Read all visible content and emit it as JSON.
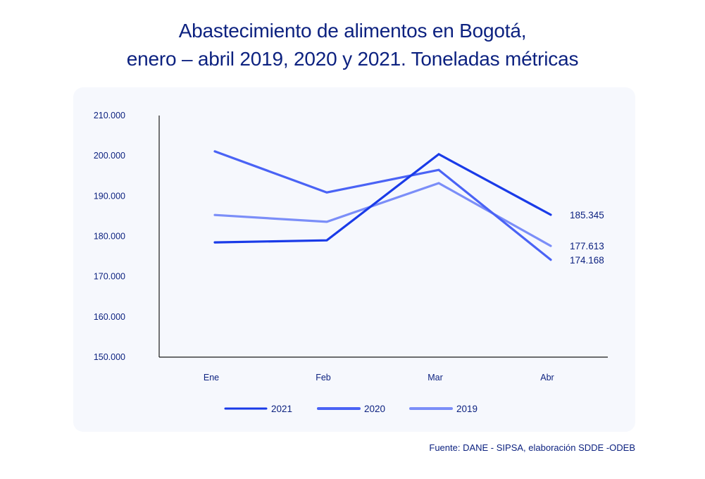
{
  "chart_data": {
    "type": "line",
    "title_lines": [
      "Abastecimiento de alimentos en Bogotá,",
      "enero – abril 2019, 2020 y 2021. Toneladas métricas"
    ],
    "xlabel": "",
    "ylabel": "",
    "categories": [
      "Ene",
      "Feb",
      "Mar",
      "Abr"
    ],
    "ylim": [
      150000,
      210000
    ],
    "yticks": [
      150000,
      160000,
      170000,
      180000,
      190000,
      200000,
      210000
    ],
    "ytick_labels": [
      "150.000",
      "160.000",
      "170.000",
      "180.000",
      "190.000",
      "200.000",
      "210.000"
    ],
    "grid": false,
    "legend_position": "bottom",
    "series": [
      {
        "name": "2021",
        "color": "#1a3be8",
        "values": [
          178500,
          179000,
          200400,
          185345
        ],
        "end_label": "185.345"
      },
      {
        "name": "2020",
        "color": "#4a63f5",
        "values": [
          201100,
          190900,
          196500,
          174168
        ],
        "end_label": "174.168"
      },
      {
        "name": "2019",
        "color": "#7b8ef8",
        "values": [
          185300,
          183600,
          193200,
          177613
        ],
        "end_label": "177.613"
      }
    ],
    "source": "Fuente: DANE - SIPSA, elaboración SDDE -ODEB"
  }
}
